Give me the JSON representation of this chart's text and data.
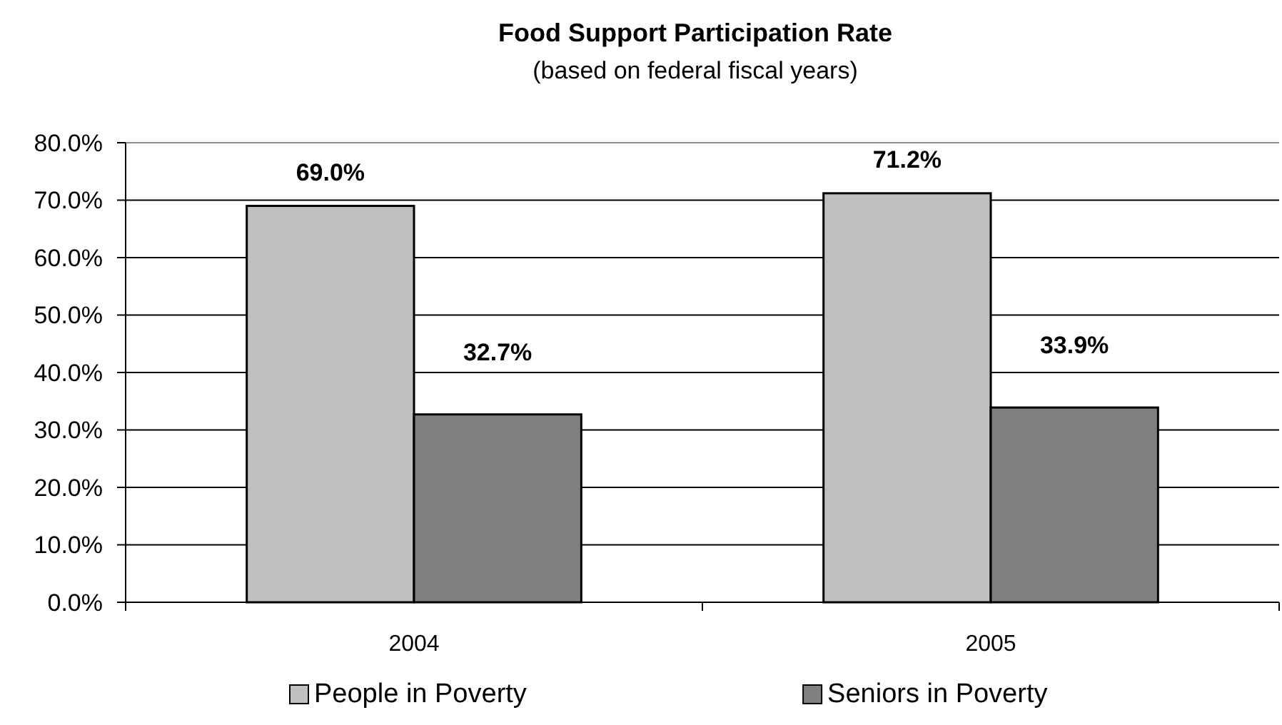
{
  "chart_data": {
    "type": "bar",
    "title": "Food Support Participation Rate",
    "subtitle": "(based on federal fiscal years)",
    "categories": [
      "2004",
      "2005"
    ],
    "series": [
      {
        "name": "People in Poverty",
        "color": "#c0c0c0",
        "values": [
          69.0,
          71.2
        ],
        "value_labels": [
          "69.0%",
          "71.2%"
        ]
      },
      {
        "name": "Seniors in Poverty",
        "color": "#808080",
        "values": [
          32.7,
          33.9
        ],
        "value_labels": [
          "32.7%",
          "33.9%"
        ]
      }
    ],
    "ylim": [
      0,
      80
    ],
    "yticks": [
      {
        "value": 0,
        "label": "0.0%"
      },
      {
        "value": 10,
        "label": "10.0%"
      },
      {
        "value": 20,
        "label": "20.0%"
      },
      {
        "value": 30,
        "label": "30.0%"
      },
      {
        "value": 40,
        "label": "40.0%"
      },
      {
        "value": 50,
        "label": "50.0%"
      },
      {
        "value": 60,
        "label": "60.0%"
      },
      {
        "value": 70,
        "label": "70.0%"
      },
      {
        "value": 80,
        "label": "80.0%"
      }
    ],
    "grid": "y",
    "legend": "bottom"
  }
}
